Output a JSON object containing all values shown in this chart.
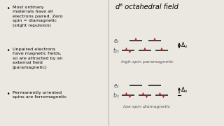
{
  "bg_color": "#ebe8e2",
  "title_right": "d⁶ octahedral field",
  "title_fontsize": 7.0,
  "bullet_points": [
    "Most ordinary\nmaterials have all\nelectrons paired. Zero\nspin = diamagnetic\n(slight repulsion)",
    "Unpaired electrons\nhave magnetic fields,\nso are attracted by an\nexternal field\n(paramagnetic)",
    "Permanently oriented\nspins are ferromagnetic"
  ],
  "bullet_fontsize": 4.6,
  "arrow_color": "#cc2222",
  "line_color": "#222222",
  "label_color": "#555555",
  "eg_label": "eᵧ",
  "t2g_label": "t₂ᵧ",
  "high_spin_label": "high-spin paramagnetic",
  "low_spin_label": "low-spin diamagnetic"
}
